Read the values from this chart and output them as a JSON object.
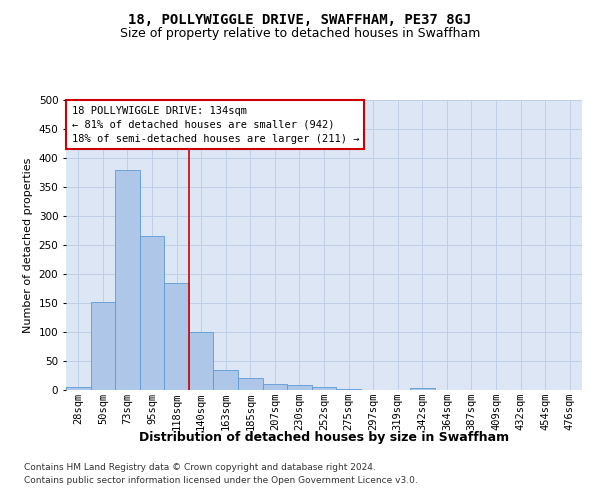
{
  "title": "18, POLLYWIGGLE DRIVE, SWAFFHAM, PE37 8GJ",
  "subtitle": "Size of property relative to detached houses in Swaffham",
  "xlabel": "Distribution of detached houses by size in Swaffham",
  "ylabel": "Number of detached properties",
  "bar_labels": [
    "28sqm",
    "50sqm",
    "73sqm",
    "95sqm",
    "118sqm",
    "140sqm",
    "163sqm",
    "185sqm",
    "207sqm",
    "230sqm",
    "252sqm",
    "275sqm",
    "297sqm",
    "319sqm",
    "342sqm",
    "364sqm",
    "387sqm",
    "409sqm",
    "432sqm",
    "454sqm",
    "476sqm"
  ],
  "bar_values": [
    5,
    152,
    380,
    265,
    185,
    100,
    35,
    20,
    10,
    8,
    5,
    2,
    0,
    0,
    4,
    0,
    0,
    0,
    0,
    0,
    0
  ],
  "bar_color": "#aec6e8",
  "bar_edge_color": "#5b9bd5",
  "grid_color": "#c0cfe8",
  "bg_color": "#dce6f5",
  "vline_x_index": 5,
  "vline_color": "#cc0000",
  "annotation_text": "18 POLLYWIGGLE DRIVE: 134sqm\n← 81% of detached houses are smaller (942)\n18% of semi-detached houses are larger (211) →",
  "annotation_box_color": "#ffffff",
  "annotation_box_edge": "#cc0000",
  "ylim": [
    0,
    500
  ],
  "footer1": "Contains HM Land Registry data © Crown copyright and database right 2024.",
  "footer2": "Contains public sector information licensed under the Open Government Licence v3.0.",
  "title_fontsize": 10,
  "subtitle_fontsize": 9,
  "xlabel_fontsize": 9,
  "ylabel_fontsize": 8,
  "tick_fontsize": 7.5,
  "annotation_fontsize": 7.5,
  "footer_fontsize": 6.5
}
